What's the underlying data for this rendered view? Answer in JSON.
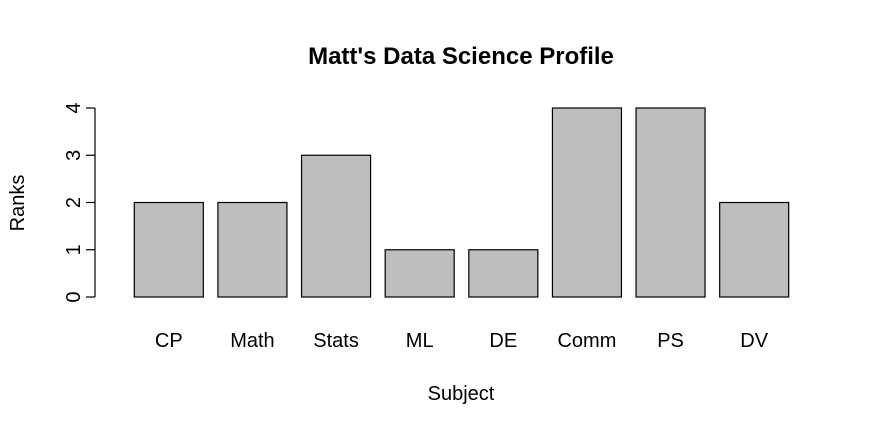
{
  "chart_data": {
    "type": "bar",
    "title": "Matt's Data Science Profile",
    "xlabel": "Subject",
    "ylabel": "Ranks",
    "categories": [
      "CP",
      "Math",
      "Stats",
      "ML",
      "DE",
      "Comm",
      "PS",
      "DV"
    ],
    "values": [
      2,
      2,
      3,
      1,
      1,
      4,
      4,
      2
    ],
    "ylim": [
      0,
      4
    ],
    "yticks": [
      0,
      1,
      2,
      3,
      4
    ],
    "grid": false,
    "legend": "none",
    "bar_color": "#bebebe",
    "edge_color": "#000000"
  }
}
